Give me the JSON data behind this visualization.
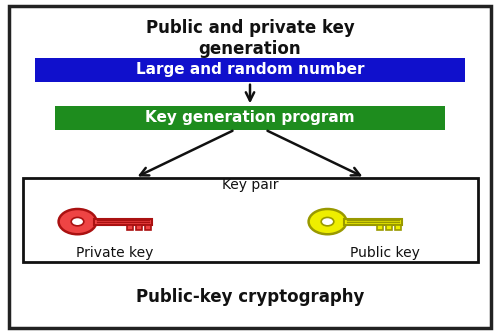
{
  "title": "Public and private key\ngeneration",
  "subtitle": "Public-key cryptography",
  "box1_text": "Large and random number",
  "box1_color": "#1010CC",
  "box1_text_color": "#FFFFFF",
  "box2_text": "Key generation program",
  "box2_color": "#1E8C1E",
  "box2_text_color": "#FFFFFF",
  "keypair_box_color": "#FFFFFF",
  "keypair_box_edge": "#111111",
  "keypair_label": "Key pair",
  "private_key_label": "Private key",
  "public_key_label": "Public key",
  "private_key_color": "#EE4444",
  "private_key_dark": "#AA1111",
  "public_key_color": "#EEEE00",
  "public_key_dark": "#999900",
  "bg_color": "#FFFFFF",
  "border_color": "#222222",
  "text_color": "#111111",
  "arrow_color": "#111111"
}
